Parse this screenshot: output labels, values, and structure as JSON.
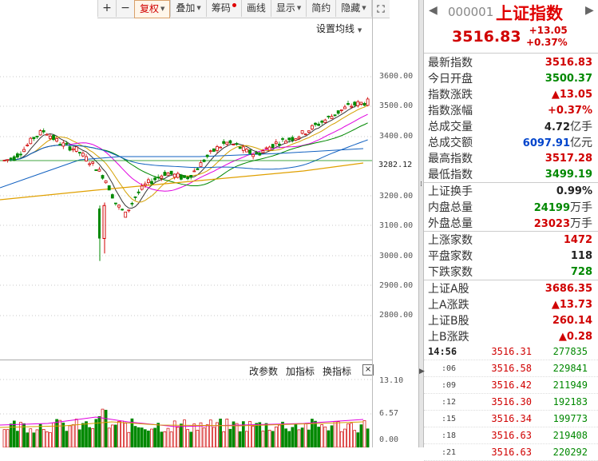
{
  "toolbar": {
    "buttons": [
      {
        "label": "+"
      },
      {
        "label": "−"
      },
      {
        "label": "复权"
      },
      {
        "label": "叠加"
      },
      {
        "label": "筹码"
      },
      {
        "label": "画线"
      },
      {
        "label": "显示"
      },
      {
        "label": "简约"
      },
      {
        "label": "隐藏"
      }
    ]
  },
  "ma_settings_label": "设置均线",
  "price_axis": {
    "ticks": [
      "3600.00",
      "3500.00",
      "3400.00",
      "3200.00",
      "3100.00",
      "3000.00",
      "2900.00",
      "2800.00"
    ],
    "current": "3282.12"
  },
  "volume": {
    "buttons": [
      "改参数",
      "加指标",
      "换指标"
    ],
    "close": "×",
    "axis": [
      "13.10",
      "6.57",
      "0.00"
    ]
  },
  "colors": {
    "up": "#d00000",
    "down": "#008800",
    "accent_blue": "#0044cc"
  },
  "panel": {
    "code": "000001",
    "name": "上证指数",
    "price": "3516.83",
    "change": "+13.05",
    "change_pct": "+0.37%",
    "group1": [
      {
        "label": "最新指数",
        "value": "3516.83",
        "color": "red"
      },
      {
        "label": "今日开盘",
        "value": "3500.37",
        "color": "green"
      },
      {
        "label": "指数涨跌",
        "value": "▲13.05",
        "color": "red"
      },
      {
        "label": "指数涨幅",
        "value": "+0.37%",
        "color": "red"
      },
      {
        "label": "总成交量",
        "value": "4.72",
        "unit": "亿手",
        "color": "dark"
      },
      {
        "label": "总成交额",
        "value": "6097.91",
        "unit": "亿元",
        "color": "blue"
      },
      {
        "label": "最高指数",
        "value": "3517.28",
        "color": "red"
      },
      {
        "label": "最低指数",
        "value": "3499.19",
        "color": "green"
      }
    ],
    "group2": [
      {
        "label": "上证换手",
        "value": "0.99%",
        "color": "dark"
      },
      {
        "label": "内盘总量",
        "value": "24199",
        "unit": "万手",
        "color": "green"
      },
      {
        "label": "外盘总量",
        "value": "23023",
        "unit": "万手",
        "color": "red"
      }
    ],
    "group3": [
      {
        "label": "上涨家数",
        "value": "1472",
        "color": "red"
      },
      {
        "label": "平盘家数",
        "value": "118",
        "color": "dark"
      },
      {
        "label": "下跌家数",
        "value": "728",
        "color": "green"
      }
    ],
    "group4": [
      {
        "label": "上证A股",
        "value": "3686.35",
        "color": "red"
      },
      {
        "label": "上A涨跌",
        "value": "▲13.73",
        "color": "red"
      },
      {
        "label": "上证B股",
        "value": "260.14",
        "color": "red"
      },
      {
        "label": "上B涨跌",
        "value": "▲0.28",
        "color": "red"
      }
    ],
    "ticks": [
      {
        "time": "14:56",
        "price": "3516.31",
        "vol": "277835"
      },
      {
        "time": ":06",
        "price": "3516.58",
        "vol": "229841"
      },
      {
        "time": ":09",
        "price": "3516.42",
        "vol": "211949"
      },
      {
        "time": ":12",
        "price": "3516.30",
        "vol": "192183"
      },
      {
        "time": ":15",
        "price": "3516.34",
        "vol": "199773"
      },
      {
        "time": ":18",
        "price": "3516.63",
        "vol": "219408"
      },
      {
        "time": ":21",
        "price": "3516.63",
        "vol": "220292"
      }
    ]
  }
}
